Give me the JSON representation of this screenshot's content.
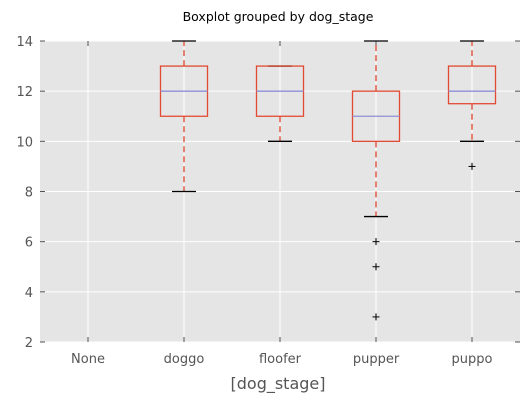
{
  "chart_data": {
    "type": "box",
    "title": "Boxplot grouped by dog_stage",
    "xlabel": "[dog_stage]",
    "ylabel": "",
    "categories": [
      "None",
      "doggo",
      "floofer",
      "pupper",
      "puppo"
    ],
    "ylim": [
      2,
      14
    ],
    "yticks": [
      2,
      4,
      6,
      8,
      10,
      12,
      14
    ],
    "grid": true,
    "colors": {
      "background": "#e5e5e5",
      "grid": "#ffffff",
      "box": "#e24a33",
      "median": "#8f8fd6",
      "cap": "#000000",
      "tick_text": "#555555"
    },
    "boxes": [
      {
        "category": "None",
        "empty": true
      },
      {
        "category": "doggo",
        "whislo": 8,
        "q1": 11,
        "med": 12,
        "q3": 13,
        "whishi": 14,
        "fliers": []
      },
      {
        "category": "floofer",
        "whislo": 10,
        "q1": 11,
        "med": 12,
        "q3": 13,
        "whishi": 13,
        "fliers": []
      },
      {
        "category": "pupper",
        "whislo": 7,
        "q1": 10,
        "med": 11,
        "q3": 12,
        "whishi": 14,
        "fliers": [
          6,
          5,
          3
        ]
      },
      {
        "category": "puppo",
        "whislo": 10,
        "q1": 11.5,
        "med": 12,
        "q3": 13,
        "whishi": 14,
        "fliers": [
          9
        ]
      }
    ]
  }
}
